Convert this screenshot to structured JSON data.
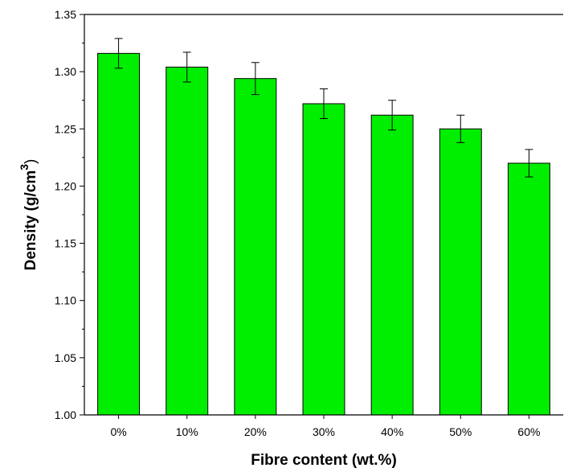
{
  "chart_data": {
    "type": "bar",
    "title": "",
    "xlabel": "Fibre content (wt.%)",
    "ylabel": "Density (g/cm",
    "ylabel_superscript": "3",
    "ylabel_close": ")",
    "categories": [
      "0%",
      "10%",
      "20%",
      "30%",
      "40%",
      "50%",
      "60%"
    ],
    "values": [
      1.316,
      1.304,
      1.294,
      1.272,
      1.262,
      1.25,
      1.22
    ],
    "errors": [
      0.013,
      0.013,
      0.014,
      0.013,
      0.013,
      0.012,
      0.012
    ],
    "ylim": [
      1.0,
      1.35
    ],
    "yticks": [
      "1.00",
      "1.05",
      "1.10",
      "1.15",
      "1.20",
      "1.25",
      "1.30",
      "1.35"
    ],
    "grid": false,
    "bar_color": "#00ee00",
    "edge_color": "#000000"
  }
}
